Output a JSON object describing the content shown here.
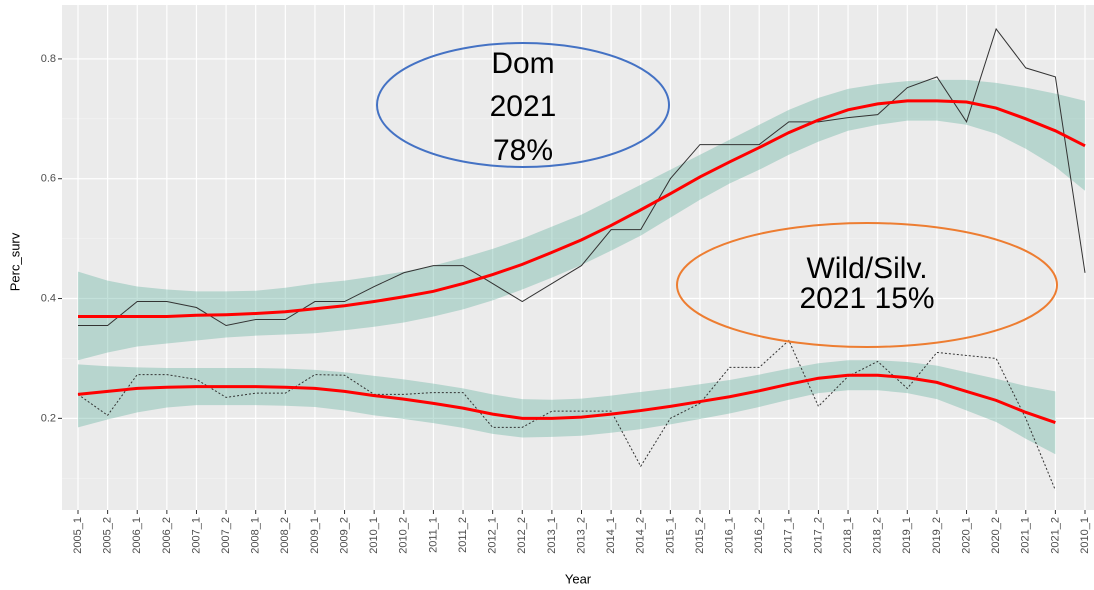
{
  "chart_data": {
    "type": "line",
    "x_label": "Year",
    "y_label": "Perc_surv",
    "categories": [
      "2005_1",
      "2005_2",
      "2006_1",
      "2006_2",
      "2007_1",
      "2007_2",
      "2008_1",
      "2008_2",
      "2009_1",
      "2009_2",
      "2010_1",
      "2010_2",
      "2011_1",
      "2011_2",
      "2012_1",
      "2012_2",
      "2013_1",
      "2013_2",
      "2014_1",
      "2014_2",
      "2015_1",
      "2015_2",
      "2016_1",
      "2016_2",
      "2017_1",
      "2017_2",
      "2018_1",
      "2018_2",
      "2019_1",
      "2019_2",
      "2020_1",
      "2020_2",
      "2021_1",
      "2021_2",
      "2010_1"
    ],
    "ylim": [
      0.047,
      0.89
    ],
    "yticks": [
      0.2,
      0.4,
      0.6,
      0.8
    ],
    "yminor": [
      0.1,
      0.3,
      0.5,
      0.7
    ],
    "grid": true,
    "bands": [
      {
        "color": "#69b3a2",
        "upper": [
          0.445,
          0.43,
          0.42,
          0.415,
          0.412,
          0.412,
          0.413,
          0.418,
          0.425,
          0.43,
          0.437,
          0.445,
          0.455,
          0.468,
          0.483,
          0.5,
          0.52,
          0.54,
          0.565,
          0.59,
          0.615,
          0.64,
          0.665,
          0.69,
          0.715,
          0.735,
          0.75,
          0.758,
          0.763,
          0.765,
          0.765,
          0.76,
          0.752,
          0.742,
          0.73
        ],
        "lower": [
          0.297,
          0.31,
          0.32,
          0.325,
          0.33,
          0.335,
          0.338,
          0.34,
          0.342,
          0.347,
          0.353,
          0.36,
          0.37,
          0.382,
          0.397,
          0.415,
          0.435,
          0.456,
          0.48,
          0.505,
          0.535,
          0.565,
          0.592,
          0.615,
          0.64,
          0.662,
          0.68,
          0.69,
          0.697,
          0.697,
          0.69,
          0.675,
          0.65,
          0.62,
          0.58
        ]
      },
      {
        "color": "#69b3a2",
        "upper": [
          0.29,
          0.287,
          0.285,
          0.284,
          0.284,
          0.284,
          0.284,
          0.283,
          0.281,
          0.277,
          0.271,
          0.265,
          0.258,
          0.25,
          0.24,
          0.232,
          0.231,
          0.233,
          0.238,
          0.244,
          0.25,
          0.257,
          0.264,
          0.273,
          0.283,
          0.292,
          0.297,
          0.297,
          0.294,
          0.288,
          0.277,
          0.266,
          0.254,
          0.245,
          null
        ],
        "lower": [
          0.185,
          0.198,
          0.21,
          0.218,
          0.222,
          0.222,
          0.222,
          0.221,
          0.219,
          0.213,
          0.205,
          0.199,
          0.192,
          0.184,
          0.174,
          0.168,
          0.169,
          0.171,
          0.176,
          0.182,
          0.19,
          0.199,
          0.208,
          0.219,
          0.231,
          0.242,
          0.247,
          0.247,
          0.242,
          0.232,
          0.213,
          0.194,
          0.166,
          0.14,
          null
        ]
      }
    ],
    "series": [
      {
        "color": "#333333",
        "dashed": false,
        "width": 1,
        "values": [
          0.355,
          0.355,
          0.395,
          0.395,
          0.385,
          0.355,
          0.365,
          0.365,
          0.395,
          0.395,
          0.42,
          0.443,
          0.455,
          0.455,
          0.425,
          0.395,
          0.425,
          0.455,
          0.515,
          0.515,
          0.6,
          0.657,
          0.657,
          0.657,
          0.695,
          0.695,
          0.702,
          0.707,
          0.752,
          0.77,
          0.695,
          0.85,
          0.785,
          0.77,
          0.443
        ]
      },
      {
        "color": "#333333",
        "dashed": true,
        "width": 1,
        "values": [
          0.24,
          0.205,
          0.273,
          0.273,
          0.265,
          0.235,
          0.242,
          0.242,
          0.273,
          0.272,
          0.24,
          0.24,
          0.243,
          0.243,
          0.185,
          0.185,
          0.212,
          0.212,
          0.212,
          0.12,
          0.2,
          0.225,
          0.285,
          0.285,
          0.33,
          0.22,
          0.27,
          0.295,
          0.25,
          0.31,
          0.305,
          0.3,
          0.2,
          0.08,
          null
        ]
      },
      {
        "color": "#ff0000",
        "dashed": false,
        "width": 3,
        "values": [
          0.37,
          0.37,
          0.37,
          0.37,
          0.372,
          0.373,
          0.375,
          0.378,
          0.383,
          0.388,
          0.395,
          0.403,
          0.412,
          0.425,
          0.44,
          0.457,
          0.477,
          0.498,
          0.522,
          0.548,
          0.575,
          0.603,
          0.628,
          0.652,
          0.677,
          0.698,
          0.715,
          0.725,
          0.73,
          0.73,
          0.728,
          0.718,
          0.7,
          0.68,
          0.655
        ]
      },
      {
        "color": "#ff0000",
        "dashed": false,
        "width": 3,
        "values": [
          0.24,
          0.245,
          0.25,
          0.252,
          0.253,
          0.253,
          0.253,
          0.252,
          0.25,
          0.245,
          0.238,
          0.232,
          0.225,
          0.217,
          0.207,
          0.2,
          0.2,
          0.202,
          0.207,
          0.213,
          0.22,
          0.228,
          0.236,
          0.246,
          0.257,
          0.267,
          0.272,
          0.272,
          0.268,
          0.26,
          0.245,
          0.23,
          0.21,
          0.193,
          null
        ]
      }
    ],
    "annotations": [
      {
        "lines": [
          "Dom",
          "2021",
          "78%"
        ],
        "color": "#4472c4"
      },
      {
        "lines": [
          "Wild/Silv.",
          "2021 15%"
        ],
        "color": "#ed7d31"
      }
    ]
  }
}
